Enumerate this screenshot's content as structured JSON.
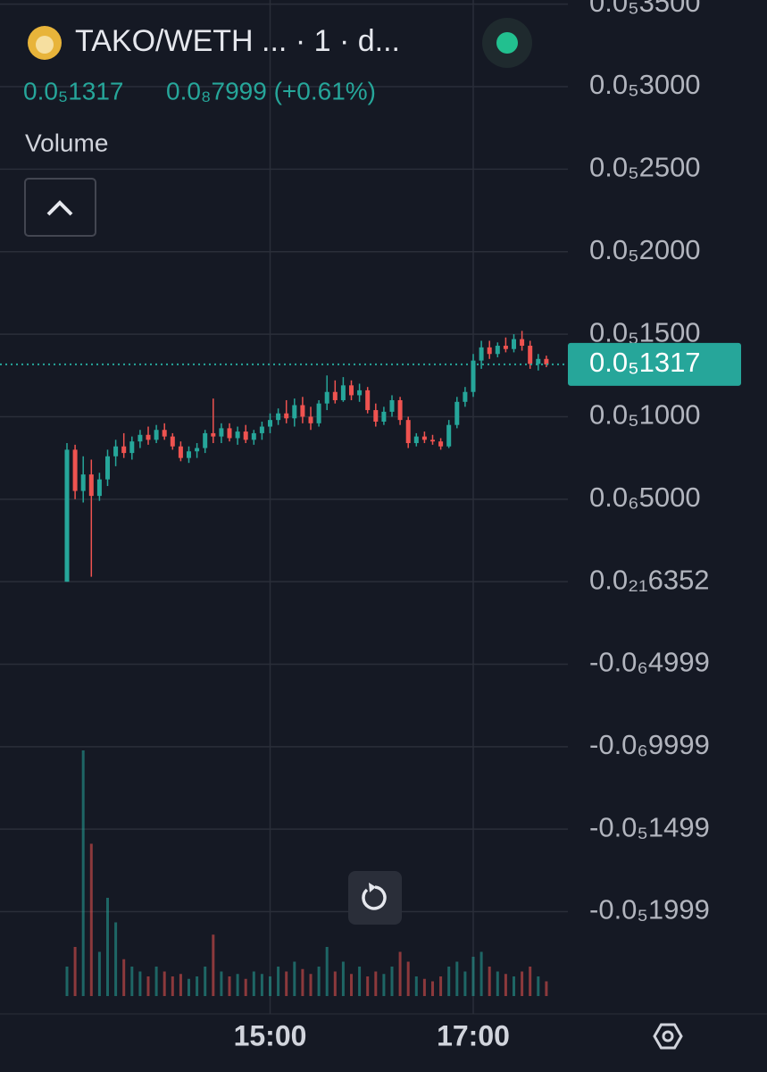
{
  "header": {
    "title": "TAKO/WETH ... · 1 · d...",
    "last": "0.0₅1317",
    "change": "0.0₈7999 (+0.61%)",
    "volume_label": "Volume"
  },
  "chart_data": {
    "type": "candlestick",
    "categories": [
      null,
      null,
      null,
      null,
      null,
      null,
      null,
      null,
      null,
      null,
      null,
      null,
      null,
      null,
      null,
      null,
      null,
      null,
      null,
      null,
      null,
      null,
      null,
      null,
      null,
      "15:00",
      null,
      null,
      null,
      null,
      null,
      null,
      null,
      null,
      null,
      null,
      null,
      null,
      null,
      null,
      null,
      null,
      null,
      null,
      null,
      null,
      null,
      null,
      null,
      null,
      "17:00",
      null,
      null,
      null,
      null,
      null,
      null,
      null,
      null,
      null
    ],
    "open": [
      0,
      8e-07,
      5.5e-07,
      6.5e-07,
      5.2e-07,
      6.2e-07,
      7.6e-07,
      8.2e-07,
      7.8e-07,
      8.5e-07,
      8.9e-07,
      8.6e-07,
      9.2e-07,
      8.8e-07,
      8.2e-07,
      7.5e-07,
      7.9e-07,
      8.1e-07,
      9e-07,
      8.8e-07,
      9.3e-07,
      8.7e-07,
      9.1e-07,
      8.6e-07,
      9e-07,
      9.4e-07,
      9.8e-07,
      1.02e-06,
      9.9e-07,
      1.07e-06,
      1e-06,
      9.6e-07,
      1.08e-06,
      1.15e-06,
      1.1e-06,
      1.19e-06,
      1.13e-06,
      1.16e-06,
      1.04e-06,
      9.7e-07,
      1.03e-06,
      1.1e-06,
      9.8e-07,
      8.4e-07,
      8.8e-07,
      8.6e-07,
      8.5e-07,
      8.2e-07,
      9.5e-07,
      1.09e-06,
      1.15e-06,
      1.34e-06,
      1.42e-06,
      1.38e-06,
      1.43e-06,
      1.41e-06,
      1.47e-06,
      1.43e-06,
      1.32e-06,
      1.35e-06
    ],
    "high": [
      8.4e-07,
      8.3e-07,
      7.6e-07,
      7.4e-07,
      6.6e-07,
      8e-07,
      8.6e-07,
      9e-07,
      8.8e-07,
      9.2e-07,
      9.4e-07,
      9.5e-07,
      9.6e-07,
      9e-07,
      8.5e-07,
      8.2e-07,
      8.4e-07,
      9.2e-07,
      1.11e-06,
      9.6e-07,
      9.6e-07,
      9.4e-07,
      9.5e-07,
      9.2e-07,
      9.7e-07,
      1.02e-06,
      1.05e-06,
      1.1e-06,
      1.11e-06,
      1.12e-06,
      1.06e-06,
      1.1e-06,
      1.25e-06,
      1.22e-06,
      1.24e-06,
      1.22e-06,
      1.2e-06,
      1.18e-06,
      1.08e-06,
      1.06e-06,
      1.13e-06,
      1.12e-06,
      1e-06,
      9e-07,
      9.1e-07,
      8.9e-07,
      8.7e-07,
      9.8e-07,
      1.12e-06,
      1.18e-06,
      1.38e-06,
      1.46e-06,
      1.46e-06,
      1.45e-06,
      1.48e-06,
      1.5e-06,
      1.52e-06,
      1.46e-06,
      1.38e-06,
      1.37e-06
    ],
    "low": [
      0,
      5e-07,
      4.8e-07,
      3e-08,
      4.9e-07,
      5.8e-07,
      7e-07,
      7.5e-07,
      7.4e-07,
      8.1e-07,
      8.3e-07,
      8.4e-07,
      8.6e-07,
      8e-07,
      7.3e-07,
      7.2e-07,
      7.5e-07,
      7.8e-07,
      8.4e-07,
      8.4e-07,
      8.5e-07,
      8.3e-07,
      8.4e-07,
      8.3e-07,
      8.6e-07,
      9e-07,
      9.5e-07,
      9.6e-07,
      9.4e-07,
      9.6e-07,
      9.2e-07,
      9.4e-07,
      1.04e-06,
      1.08e-06,
      1.09e-06,
      1.1e-06,
      1.09e-06,
      1.02e-06,
      9.4e-07,
      9.5e-07,
      1e-06,
      9.5e-07,
      8.1e-07,
      8.2e-07,
      8.4e-07,
      8.3e-07,
      8e-07,
      8.1e-07,
      9.3e-07,
      1.06e-06,
      1.12e-06,
      1.29e-06,
      1.35e-06,
      1.36e-06,
      1.39e-06,
      1.39e-06,
      1.4e-06,
      1.29e-06,
      1.28e-06,
      1.3e-06
    ],
    "close": [
      8e-07,
      5.5e-07,
      6.5e-07,
      5.2e-07,
      6.2e-07,
      7.6e-07,
      8.2e-07,
      7.8e-07,
      8.5e-07,
      8.9e-07,
      8.6e-07,
      9.2e-07,
      8.8e-07,
      8.2e-07,
      7.5e-07,
      7.9e-07,
      8.1e-07,
      9e-07,
      8.8e-07,
      9.3e-07,
      8.7e-07,
      9.1e-07,
      8.6e-07,
      9e-07,
      9.4e-07,
      9.8e-07,
      1.02e-06,
      9.9e-07,
      1.07e-06,
      1e-06,
      9.6e-07,
      1.08e-06,
      1.15e-06,
      1.1e-06,
      1.19e-06,
      1.13e-06,
      1.16e-06,
      1.04e-06,
      9.7e-07,
      1.03e-06,
      1.1e-06,
      9.8e-07,
      8.4e-07,
      8.8e-07,
      8.6e-07,
      8.5e-07,
      8.2e-07,
      9.5e-07,
      1.09e-06,
      1.15e-06,
      1.34e-06,
      1.42e-06,
      1.38e-06,
      1.43e-06,
      1.41e-06,
      1.47e-06,
      1.43e-06,
      1.32e-06,
      1.35e-06,
      1.317e-06
    ],
    "volume": [
      12,
      20,
      100,
      62,
      18,
      40,
      30,
      15,
      12,
      10,
      8,
      12,
      10,
      8,
      9,
      7,
      8,
      12,
      25,
      10,
      8,
      9,
      7,
      10,
      9,
      8,
      12,
      10,
      14,
      11,
      9,
      12,
      20,
      10,
      14,
      9,
      12,
      8,
      10,
      9,
      12,
      18,
      14,
      8,
      7,
      6,
      8,
      12,
      14,
      10,
      16,
      18,
      12,
      10,
      9,
      8,
      10,
      12,
      8,
      6
    ],
    "up_color": "#26a69a",
    "down_color": "#ef5350",
    "ylim": [
      -2.619e-06,
      3.525e-06
    ],
    "yticks": [
      {
        "value": 3.5e-06,
        "label": "0.0₅3500"
      },
      {
        "value": 3e-06,
        "label": "0.0₅3000"
      },
      {
        "value": 2.5e-06,
        "label": "0.0₅2500"
      },
      {
        "value": 2e-06,
        "label": "0.0₅2000"
      },
      {
        "value": 1.5e-06,
        "label": "0.0₅1500"
      },
      {
        "value": 1e-06,
        "label": "0.0₅1000"
      },
      {
        "value": 5e-07,
        "label": "0.0₆5000"
      },
      {
        "value": 6.352e-22,
        "label": "0.0₂₁6352"
      },
      {
        "value": -4.999e-07,
        "label": "-0.0₆4999"
      },
      {
        "value": -9.999e-07,
        "label": "-0.0₆9999"
      },
      {
        "value": -1.499e-06,
        "label": "-0.0₅1499"
      },
      {
        "value": -1.999e-06,
        "label": "-0.0₅1999"
      }
    ],
    "last_price": {
      "value": 1.317e-06,
      "label": "0.0₅1317"
    },
    "grid": true
  }
}
